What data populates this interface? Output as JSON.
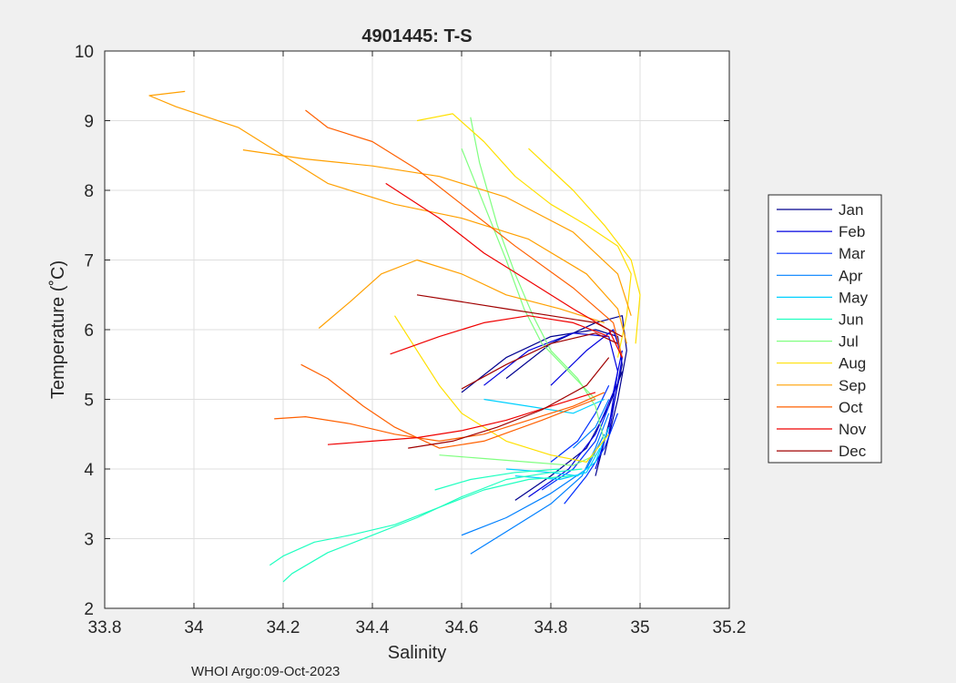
{
  "chart_data": {
    "type": "line",
    "title": "4901445:  T-S",
    "xlabel": "Salinity",
    "ylabel": "Temperature (˚C)",
    "xlim": [
      33.8,
      35.2
    ],
    "ylim": [
      2,
      10
    ],
    "xticks": [
      "33.8",
      "34",
      "34.2",
      "34.4",
      "34.6",
      "34.8",
      "35",
      "35.2"
    ],
    "yticks": [
      "2",
      "3",
      "4",
      "5",
      "6",
      "7",
      "8",
      "9",
      "10"
    ],
    "grid": true,
    "legend_position": "outside-right",
    "series": [
      {
        "name": "Jan",
        "color": "#00008f",
        "profiles": [
          [
            [
              34.6,
              5.1
            ],
            [
              34.7,
              5.6
            ],
            [
              34.8,
              5.9
            ],
            [
              34.9,
              6.0
            ],
            [
              34.95,
              5.9
            ],
            [
              34.96,
              5.5
            ],
            [
              34.94,
              4.9
            ],
            [
              34.92,
              4.4
            ],
            [
              34.9,
              3.9
            ]
          ],
          [
            [
              34.7,
              5.3
            ],
            [
              34.8,
              5.8
            ],
            [
              34.9,
              6.1
            ],
            [
              34.96,
              6.2
            ],
            [
              34.97,
              5.7
            ],
            [
              34.95,
              5.0
            ],
            [
              34.92,
              4.2
            ]
          ],
          [
            [
              34.72,
              3.55
            ],
            [
              34.8,
              3.9
            ],
            [
              34.88,
              4.3
            ],
            [
              34.93,
              4.9
            ],
            [
              34.96,
              5.4
            ]
          ]
        ]
      },
      {
        "name": "Feb",
        "color": "#0000df",
        "profiles": [
          [
            [
              34.65,
              5.2
            ],
            [
              34.75,
              5.7
            ],
            [
              34.85,
              5.95
            ],
            [
              34.93,
              5.9
            ],
            [
              34.95,
              5.4
            ],
            [
              34.93,
              4.6
            ],
            [
              34.9,
              4.0
            ]
          ],
          [
            [
              34.75,
              3.6
            ],
            [
              34.84,
              4.0
            ],
            [
              34.9,
              4.5
            ],
            [
              34.94,
              5.1
            ],
            [
              34.96,
              5.7
            ]
          ],
          [
            [
              34.8,
              5.2
            ],
            [
              34.88,
              5.7
            ],
            [
              34.94,
              6.0
            ],
            [
              34.96,
              5.6
            ],
            [
              34.93,
              4.5
            ]
          ]
        ]
      },
      {
        "name": "Mar",
        "color": "#0030ff",
        "profiles": [
          [
            [
              34.8,
              4.1
            ],
            [
              34.86,
              4.4
            ],
            [
              34.9,
              4.8
            ],
            [
              34.93,
              5.2
            ]
          ],
          [
            [
              34.78,
              3.7
            ],
            [
              34.85,
              4.0
            ],
            [
              34.9,
              4.4
            ],
            [
              34.93,
              4.9
            ]
          ],
          [
            [
              34.83,
              3.5
            ],
            [
              34.88,
              3.9
            ],
            [
              34.92,
              4.3
            ],
            [
              34.95,
              4.8
            ]
          ]
        ]
      },
      {
        "name": "Apr",
        "color": "#0080ff",
        "profiles": [
          [
            [
              34.62,
              2.78
            ],
            [
              34.7,
              3.1
            ],
            [
              34.8,
              3.5
            ],
            [
              34.87,
              3.9
            ],
            [
              34.9,
              4.3
            ],
            [
              34.93,
              4.8
            ]
          ],
          [
            [
              34.6,
              3.05
            ],
            [
              34.7,
              3.3
            ],
            [
              34.8,
              3.65
            ],
            [
              34.88,
              4.0
            ],
            [
              34.92,
              4.5
            ]
          ],
          [
            [
              34.85,
              4.3
            ],
            [
              34.9,
              4.6
            ],
            [
              34.93,
              5.0
            ]
          ]
        ]
      },
      {
        "name": "May",
        "color": "#00d0ff",
        "profiles": [
          [
            [
              34.7,
              4.0
            ],
            [
              34.8,
              3.95
            ],
            [
              34.86,
              3.9
            ],
            [
              34.9,
              4.1
            ],
            [
              34.93,
              4.6
            ]
          ],
          [
            [
              34.72,
              3.9
            ],
            [
              34.82,
              3.85
            ],
            [
              34.88,
              3.95
            ],
            [
              34.91,
              4.3
            ]
          ],
          [
            [
              34.65,
              5.0
            ],
            [
              34.75,
              4.9
            ],
            [
              34.85,
              4.8
            ],
            [
              34.92,
              5.0
            ]
          ]
        ]
      },
      {
        "name": "Jun",
        "color": "#20ffc0",
        "profiles": [
          [
            [
              34.2,
              2.38
            ],
            [
              34.22,
              2.5
            ],
            [
              34.3,
              2.8
            ],
            [
              34.4,
              3.05
            ],
            [
              34.5,
              3.3
            ],
            [
              34.6,
              3.6
            ],
            [
              34.7,
              3.85
            ],
            [
              34.8,
              3.95
            ],
            [
              34.87,
              4.0
            ]
          ],
          [
            [
              34.17,
              2.62
            ],
            [
              34.2,
              2.75
            ],
            [
              34.27,
              2.95
            ],
            [
              34.35,
              3.05
            ],
            [
              34.45,
              3.2
            ],
            [
              34.55,
              3.45
            ],
            [
              34.65,
              3.7
            ],
            [
              34.75,
              3.85
            ],
            [
              34.85,
              3.9
            ]
          ],
          [
            [
              34.54,
              3.7
            ],
            [
              34.62,
              3.85
            ],
            [
              34.72,
              3.95
            ],
            [
              34.82,
              4.0
            ]
          ]
        ]
      },
      {
        "name": "Jul",
        "color": "#80ff80",
        "profiles": [
          [
            [
              34.62,
              9.05
            ],
            [
              34.64,
              8.4
            ],
            [
              34.68,
              7.5
            ],
            [
              34.72,
              6.8
            ],
            [
              34.76,
              6.2
            ],
            [
              34.8,
              5.7
            ],
            [
              34.86,
              5.3
            ],
            [
              34.9,
              4.9
            ],
            [
              34.92,
              4.4
            ]
          ],
          [
            [
              34.6,
              8.6
            ],
            [
              34.65,
              7.8
            ],
            [
              34.7,
              7.0
            ],
            [
              34.74,
              6.3
            ],
            [
              34.78,
              5.8
            ],
            [
              34.84,
              5.4
            ],
            [
              34.9,
              5.0
            ]
          ],
          [
            [
              34.55,
              4.2
            ],
            [
              34.65,
              4.15
            ],
            [
              34.75,
              4.1
            ],
            [
              34.85,
              4.05
            ],
            [
              34.9,
              4.2
            ]
          ]
        ]
      },
      {
        "name": "Aug",
        "color": "#ffe000",
        "profiles": [
          [
            [
              34.5,
              9.0
            ],
            [
              34.58,
              9.1
            ],
            [
              34.65,
              8.7
            ],
            [
              34.72,
              8.2
            ],
            [
              34.8,
              7.8
            ],
            [
              34.88,
              7.5
            ],
            [
              34.95,
              7.2
            ],
            [
              34.98,
              6.8
            ],
            [
              34.97,
              6.2
            ],
            [
              34.95,
              5.6
            ]
          ],
          [
            [
              34.45,
              6.2
            ],
            [
              34.5,
              5.7
            ],
            [
              34.55,
              5.2
            ],
            [
              34.6,
              4.8
            ],
            [
              34.7,
              4.4
            ],
            [
              34.8,
              4.2
            ],
            [
              34.88,
              4.1
            ],
            [
              34.93,
              4.5
            ]
          ],
          [
            [
              34.75,
              8.6
            ],
            [
              34.85,
              8.0
            ],
            [
              34.92,
              7.5
            ],
            [
              34.98,
              7.0
            ],
            [
              35.0,
              6.5
            ],
            [
              34.99,
              5.8
            ]
          ]
        ]
      },
      {
        "name": "Sep",
        "color": "#ffa000",
        "profiles": [
          [
            [
              33.98,
              9.42
            ],
            [
              33.9,
              9.36
            ],
            [
              33.96,
              9.2
            ],
            [
              34.1,
              8.9
            ],
            [
              34.2,
              8.5
            ],
            [
              34.3,
              8.1
            ],
            [
              34.45,
              7.8
            ],
            [
              34.6,
              7.6
            ],
            [
              34.75,
              7.3
            ],
            [
              34.88,
              6.8
            ],
            [
              34.95,
              6.3
            ],
            [
              34.97,
              5.8
            ]
          ],
          [
            [
              34.11,
              8.58
            ],
            [
              34.25,
              8.45
            ],
            [
              34.4,
              8.35
            ],
            [
              34.55,
              8.2
            ],
            [
              34.7,
              7.9
            ],
            [
              34.85,
              7.4
            ],
            [
              34.95,
              6.8
            ],
            [
              34.98,
              6.2
            ]
          ],
          [
            [
              34.28,
              6.02
            ],
            [
              34.35,
              6.4
            ],
            [
              34.42,
              6.8
            ],
            [
              34.5,
              7.0
            ],
            [
              34.6,
              6.8
            ],
            [
              34.7,
              6.5
            ],
            [
              34.82,
              6.3
            ],
            [
              34.92,
              6.1
            ]
          ]
        ]
      },
      {
        "name": "Oct",
        "color": "#ff6000",
        "profiles": [
          [
            [
              34.25,
              9.15
            ],
            [
              34.3,
              8.9
            ],
            [
              34.4,
              8.7
            ],
            [
              34.5,
              8.3
            ],
            [
              34.6,
              7.8
            ],
            [
              34.72,
              7.2
            ],
            [
              34.85,
              6.6
            ],
            [
              34.94,
              6.1
            ],
            [
              34.96,
              5.6
            ]
          ],
          [
            [
              34.18,
              4.72
            ],
            [
              34.25,
              4.75
            ],
            [
              34.35,
              4.65
            ],
            [
              34.45,
              4.5
            ],
            [
              34.55,
              4.4
            ],
            [
              34.65,
              4.5
            ],
            [
              34.75,
              4.7
            ],
            [
              34.85,
              4.9
            ],
            [
              34.92,
              5.1
            ]
          ],
          [
            [
              34.24,
              5.5
            ],
            [
              34.3,
              5.3
            ],
            [
              34.38,
              4.9
            ],
            [
              34.45,
              4.6
            ],
            [
              34.55,
              4.3
            ],
            [
              34.65,
              4.4
            ],
            [
              34.78,
              4.7
            ],
            [
              34.9,
              5.0
            ]
          ]
        ]
      },
      {
        "name": "Nov",
        "color": "#ef0000",
        "profiles": [
          [
            [
              34.43,
              8.1
            ],
            [
              34.55,
              7.6
            ],
            [
              34.65,
              7.1
            ],
            [
              34.75,
              6.7
            ],
            [
              34.85,
              6.3
            ],
            [
              34.93,
              6.0
            ],
            [
              34.96,
              5.6
            ]
          ],
          [
            [
              34.44,
              5.65
            ],
            [
              34.55,
              5.9
            ],
            [
              34.65,
              6.1
            ],
            [
              34.75,
              6.2
            ],
            [
              34.85,
              6.1
            ],
            [
              34.93,
              5.9
            ]
          ],
          [
            [
              34.3,
              4.35
            ],
            [
              34.4,
              4.4
            ],
            [
              34.5,
              4.45
            ],
            [
              34.6,
              4.55
            ],
            [
              34.7,
              4.7
            ],
            [
              34.8,
              4.9
            ],
            [
              34.9,
              5.1
            ]
          ]
        ]
      },
      {
        "name": "Dec",
        "color": "#a00000",
        "profiles": [
          [
            [
              34.48,
              4.3
            ],
            [
              34.58,
              4.4
            ],
            [
              34.68,
              4.6
            ],
            [
              34.78,
              4.85
            ],
            [
              34.88,
              5.2
            ],
            [
              34.93,
              5.6
            ]
          ],
          [
            [
              34.6,
              5.15
            ],
            [
              34.7,
              5.5
            ],
            [
              34.8,
              5.8
            ],
            [
              34.9,
              5.95
            ],
            [
              34.95,
              5.8
            ]
          ],
          [
            [
              34.5,
              6.5
            ],
            [
              34.6,
              6.4
            ],
            [
              34.7,
              6.3
            ],
            [
              34.8,
              6.2
            ],
            [
              34.9,
              6.1
            ],
            [
              34.96,
              5.9
            ]
          ]
        ]
      }
    ]
  },
  "footer": {
    "credit": "WHOI Argo:09-Oct-2023"
  }
}
